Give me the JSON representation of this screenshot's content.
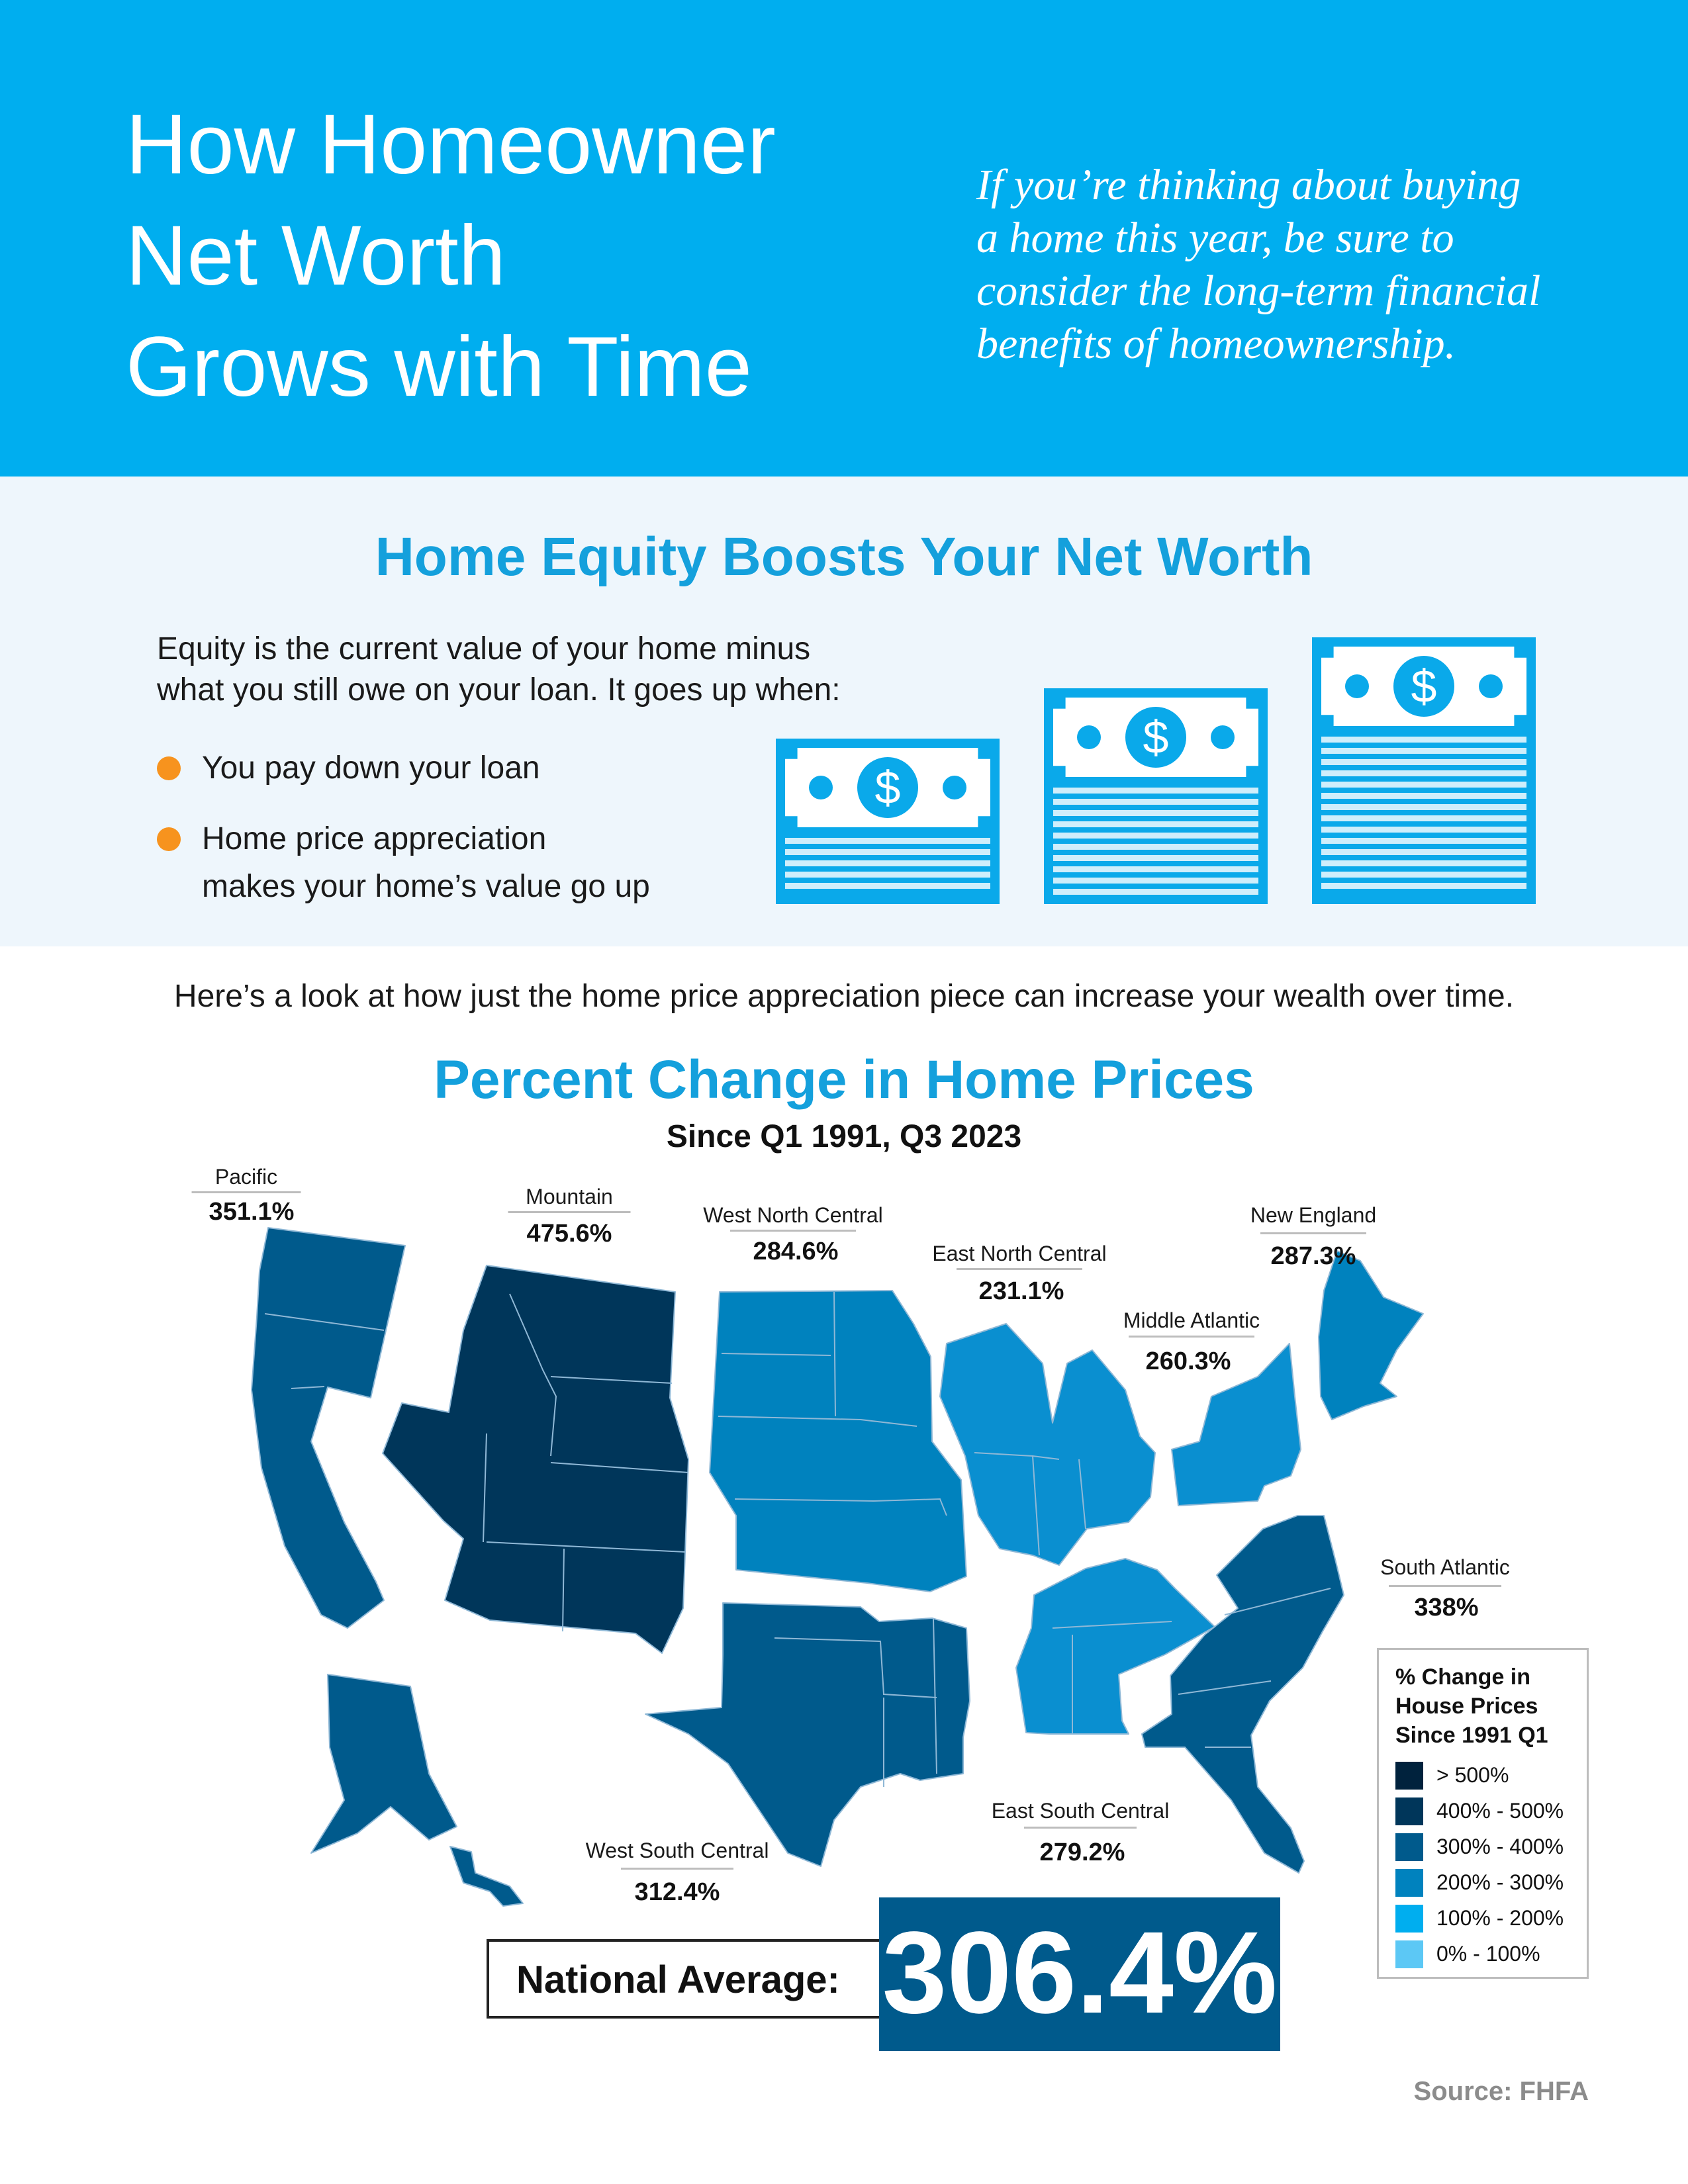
{
  "header": {
    "title_lines": [
      "How Homeowner",
      "Net Worth",
      "Grows with Time"
    ],
    "tagline_lines": [
      "If you’re thinking about buying",
      "a home this year, be sure to",
      "consider the long-term financial",
      "benefits of homeownership."
    ]
  },
  "equity": {
    "title": "Home Equity Boosts Your Net Worth",
    "intro_lines": [
      "Equity is the current value of your home minus",
      "what you still owe on your loan. It goes up when:"
    ],
    "bullets": [
      {
        "lines": [
          "You pay down your loan"
        ]
      },
      {
        "lines": [
          "Home price appreciation",
          "makes your home’s value go up"
        ]
      }
    ],
    "money_icon": "dollar-bill-stack-icon",
    "money_symbol": "$"
  },
  "lead_text": "Here’s a look at how just the home price appreciation piece can increase your wealth over time.",
  "map": {
    "title": "Percent Change in Home Prices",
    "subtitle": "Since Q1 1991, Q3 2023",
    "regions": [
      {
        "name": "Pacific",
        "value": "351.1%",
        "color": "#005a8c"
      },
      {
        "name": "Mountain",
        "value": "475.6%",
        "color": "#00365a"
      },
      {
        "name": "West North Central",
        "value": "284.6%",
        "color": "#0082be"
      },
      {
        "name": "East North Central",
        "value": "231.1%",
        "color": "#0a8fd0"
      },
      {
        "name": "New England",
        "value": "287.3%",
        "color": "#0082be"
      },
      {
        "name": "Middle Atlantic",
        "value": "260.3%",
        "color": "#0a8fd0"
      },
      {
        "name": "South Atlantic",
        "value": "338%",
        "color": "#005a8c"
      },
      {
        "name": "East South Central",
        "value": "279.2%",
        "color": "#0a8fd0"
      },
      {
        "name": "West South Central",
        "value": "312.4%",
        "color": "#005a8c"
      }
    ],
    "legend": {
      "title_lines": [
        "% Change in",
        "House Prices",
        "Since 1991 Q1"
      ],
      "items": [
        {
          "label": "> 500%",
          "color": "#00223d"
        },
        {
          "label": "400% - 500%",
          "color": "#00365a"
        },
        {
          "label": "300% - 400%",
          "color": "#005a8c"
        },
        {
          "label": "200% - 300%",
          "color": "#0082be"
        },
        {
          "label": "100% - 200%",
          "color": "#00aeef"
        },
        {
          "label": "0% - 100%",
          "color": "#5cc8f5"
        }
      ]
    },
    "national_average": {
      "label": "National Average:",
      "value": "306.4%"
    },
    "source": "Source: FHFA"
  }
}
